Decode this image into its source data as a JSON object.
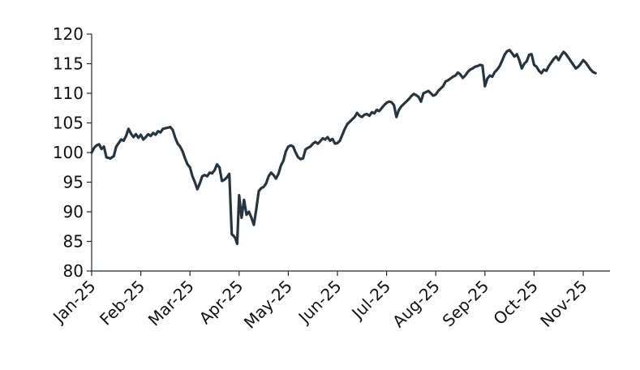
{
  "chart_data": {
    "type": "line",
    "title": "",
    "xlabel": "",
    "ylabel": "",
    "ylim": [
      80,
      120
    ],
    "yticks": [
      80,
      85,
      90,
      95,
      100,
      105,
      110,
      115,
      120
    ],
    "x_tick_labels": [
      "Jan-25",
      "Feb-25",
      "Mar-25",
      "Apr-25",
      "May-25",
      "Jun-25",
      "Jul-25",
      "Aug-25",
      "Sep-25",
      "Oct-25",
      "Nov-25"
    ],
    "x_range_months": [
      0,
      10.6
    ],
    "grid": false,
    "legend": "none",
    "line_color": "#263540",
    "series": [
      {
        "name": "",
        "points": [
          [
            0.0,
            100.0
          ],
          [
            0.05,
            100.8
          ],
          [
            0.1,
            101.2
          ],
          [
            0.15,
            101.4
          ],
          [
            0.2,
            100.6
          ],
          [
            0.25,
            101.0
          ],
          [
            0.3,
            99.2
          ],
          [
            0.38,
            99.0
          ],
          [
            0.45,
            99.4
          ],
          [
            0.5,
            101.0
          ],
          [
            0.55,
            101.6
          ],
          [
            0.6,
            102.2
          ],
          [
            0.65,
            102.0
          ],
          [
            0.7,
            102.8
          ],
          [
            0.75,
            104.0
          ],
          [
            0.8,
            103.2
          ],
          [
            0.85,
            102.6
          ],
          [
            0.9,
            103.1
          ],
          [
            0.95,
            102.5
          ],
          [
            1.0,
            103.0
          ],
          [
            1.05,
            102.2
          ],
          [
            1.1,
            102.6
          ],
          [
            1.15,
            103.1
          ],
          [
            1.2,
            102.8
          ],
          [
            1.25,
            103.3
          ],
          [
            1.3,
            103.0
          ],
          [
            1.35,
            103.6
          ],
          [
            1.4,
            103.4
          ],
          [
            1.45,
            104.0
          ],
          [
            1.5,
            104.1
          ],
          [
            1.55,
            104.2
          ],
          [
            1.6,
            104.3
          ],
          [
            1.65,
            103.8
          ],
          [
            1.7,
            102.5
          ],
          [
            1.75,
            101.5
          ],
          [
            1.8,
            101.0
          ],
          [
            1.85,
            100.2
          ],
          [
            1.9,
            99.0
          ],
          [
            1.95,
            98.0
          ],
          [
            2.0,
            97.5
          ],
          [
            2.05,
            96.0
          ],
          [
            2.1,
            95.0
          ],
          [
            2.15,
            93.8
          ],
          [
            2.2,
            94.8
          ],
          [
            2.25,
            96.0
          ],
          [
            2.3,
            96.2
          ],
          [
            2.35,
            96.0
          ],
          [
            2.4,
            96.6
          ],
          [
            2.45,
            96.5
          ],
          [
            2.5,
            97.0
          ],
          [
            2.55,
            98.0
          ],
          [
            2.6,
            97.5
          ],
          [
            2.65,
            95.2
          ],
          [
            2.7,
            95.4
          ],
          [
            2.75,
            95.8
          ],
          [
            2.8,
            96.4
          ],
          [
            2.85,
            86.2
          ],
          [
            2.88,
            86.0
          ],
          [
            2.92,
            85.6
          ],
          [
            2.96,
            84.6
          ],
          [
            3.0,
            92.8
          ],
          [
            3.05,
            89.0
          ],
          [
            3.1,
            92.0
          ],
          [
            3.15,
            89.5
          ],
          [
            3.2,
            90.0
          ],
          [
            3.25,
            89.0
          ],
          [
            3.3,
            87.8
          ],
          [
            3.35,
            90.5
          ],
          [
            3.4,
            93.5
          ],
          [
            3.45,
            94.0
          ],
          [
            3.5,
            94.2
          ],
          [
            3.55,
            94.8
          ],
          [
            3.6,
            96.0
          ],
          [
            3.65,
            96.6
          ],
          [
            3.7,
            96.2
          ],
          [
            3.75,
            95.6
          ],
          [
            3.8,
            96.4
          ],
          [
            3.85,
            97.8
          ],
          [
            3.9,
            98.6
          ],
          [
            3.95,
            100.2
          ],
          [
            4.0,
            101.0
          ],
          [
            4.05,
            101.2
          ],
          [
            4.1,
            101.0
          ],
          [
            4.15,
            100.0
          ],
          [
            4.2,
            99.2
          ],
          [
            4.25,
            98.9
          ],
          [
            4.3,
            99.0
          ],
          [
            4.35,
            100.5
          ],
          [
            4.4,
            100.8
          ],
          [
            4.45,
            101.0
          ],
          [
            4.5,
            101.5
          ],
          [
            4.55,
            101.8
          ],
          [
            4.6,
            101.5
          ],
          [
            4.65,
            101.9
          ],
          [
            4.7,
            102.4
          ],
          [
            4.75,
            102.2
          ],
          [
            4.8,
            102.6
          ],
          [
            4.85,
            102.0
          ],
          [
            4.9,
            102.3
          ],
          [
            4.95,
            101.5
          ],
          [
            5.0,
            101.6
          ],
          [
            5.05,
            102.0
          ],
          [
            5.1,
            103.0
          ],
          [
            5.15,
            104.0
          ],
          [
            5.2,
            104.8
          ],
          [
            5.25,
            105.2
          ],
          [
            5.3,
            105.6
          ],
          [
            5.35,
            106.0
          ],
          [
            5.4,
            106.7
          ],
          [
            5.45,
            106.2
          ],
          [
            5.5,
            106.0
          ],
          [
            5.55,
            106.4
          ],
          [
            5.6,
            106.5
          ],
          [
            5.65,
            106.2
          ],
          [
            5.7,
            106.8
          ],
          [
            5.75,
            106.6
          ],
          [
            5.8,
            107.2
          ],
          [
            5.85,
            107.0
          ],
          [
            5.9,
            107.5
          ],
          [
            5.95,
            108.0
          ],
          [
            6.0,
            108.4
          ],
          [
            6.05,
            108.6
          ],
          [
            6.1,
            108.5
          ],
          [
            6.15,
            108.0
          ],
          [
            6.2,
            106.0
          ],
          [
            6.25,
            107.2
          ],
          [
            6.3,
            107.8
          ],
          [
            6.35,
            108.2
          ],
          [
            6.4,
            108.6
          ],
          [
            6.45,
            109.0
          ],
          [
            6.5,
            109.5
          ],
          [
            6.55,
            109.9
          ],
          [
            6.6,
            109.7
          ],
          [
            6.65,
            109.4
          ],
          [
            6.7,
            108.6
          ],
          [
            6.75,
            110.0
          ],
          [
            6.8,
            110.2
          ],
          [
            6.85,
            110.4
          ],
          [
            6.9,
            110.0
          ],
          [
            6.95,
            109.6
          ],
          [
            7.0,
            109.8
          ],
          [
            7.05,
            110.4
          ],
          [
            7.1,
            110.8
          ],
          [
            7.15,
            111.2
          ],
          [
            7.2,
            112.0
          ],
          [
            7.25,
            112.2
          ],
          [
            7.3,
            112.5
          ],
          [
            7.35,
            112.8
          ],
          [
            7.4,
            113.0
          ],
          [
            7.45,
            113.5
          ],
          [
            7.5,
            113.2
          ],
          [
            7.55,
            112.6
          ],
          [
            7.6,
            113.0
          ],
          [
            7.65,
            113.6
          ],
          [
            7.7,
            114.0
          ],
          [
            7.75,
            114.2
          ],
          [
            7.8,
            114.5
          ],
          [
            7.85,
            114.6
          ],
          [
            7.9,
            114.8
          ],
          [
            7.95,
            114.7
          ],
          [
            8.0,
            111.2
          ],
          [
            8.05,
            112.5
          ],
          [
            8.1,
            113.0
          ],
          [
            8.15,
            112.8
          ],
          [
            8.2,
            113.6
          ],
          [
            8.25,
            114.0
          ],
          [
            8.3,
            114.6
          ],
          [
            8.35,
            115.5
          ],
          [
            8.4,
            116.5
          ],
          [
            8.45,
            117.1
          ],
          [
            8.5,
            117.3
          ],
          [
            8.55,
            116.8
          ],
          [
            8.6,
            116.2
          ],
          [
            8.65,
            116.6
          ],
          [
            8.7,
            115.6
          ],
          [
            8.75,
            114.2
          ],
          [
            8.8,
            115.0
          ],
          [
            8.85,
            115.4
          ],
          [
            8.9,
            116.5
          ],
          [
            8.95,
            116.6
          ],
          [
            9.0,
            114.8
          ],
          [
            9.05,
            114.5
          ],
          [
            9.1,
            113.8
          ],
          [
            9.15,
            113.4
          ],
          [
            9.2,
            114.0
          ],
          [
            9.25,
            113.8
          ],
          [
            9.3,
            114.6
          ],
          [
            9.35,
            115.2
          ],
          [
            9.4,
            115.8
          ],
          [
            9.45,
            116.2
          ],
          [
            9.5,
            115.6
          ],
          [
            9.55,
            116.4
          ],
          [
            9.6,
            117.0
          ],
          [
            9.65,
            116.6
          ],
          [
            9.7,
            116.0
          ],
          [
            9.75,
            115.4
          ],
          [
            9.8,
            114.8
          ],
          [
            9.85,
            114.2
          ],
          [
            9.9,
            114.5
          ],
          [
            9.95,
            115.0
          ],
          [
            10.0,
            115.6
          ],
          [
            10.05,
            115.2
          ],
          [
            10.1,
            114.6
          ],
          [
            10.15,
            114.0
          ],
          [
            10.2,
            113.6
          ],
          [
            10.25,
            113.4
          ]
        ]
      }
    ]
  }
}
